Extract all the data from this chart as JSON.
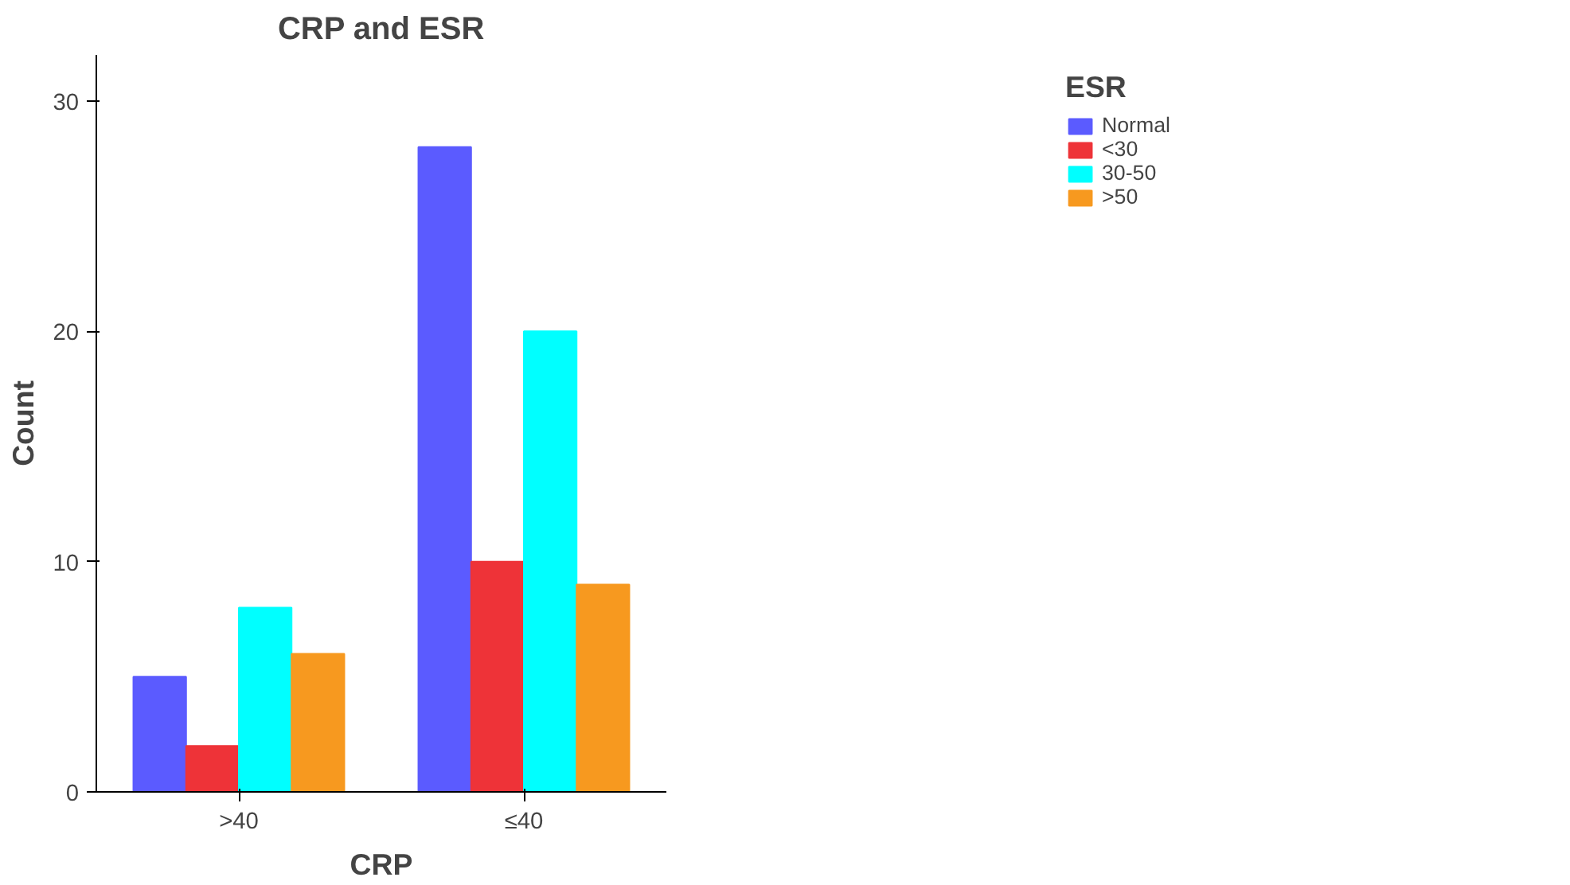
{
  "chart_data": {
    "type": "bar",
    "title": "CRP and ESR",
    "xlabel": "CRP",
    "ylabel": "Count",
    "legend_title": "ESR",
    "categories": [
      ">40",
      "≤40"
    ],
    "series": [
      {
        "name": "Normal",
        "color": "#5b5bff",
        "values": [
          5,
          28
        ]
      },
      {
        "name": "<30",
        "color": "#ee3338",
        "values": [
          2,
          10
        ]
      },
      {
        "name": "30-50",
        "color": "#00ffff",
        "values": [
          8,
          20
        ]
      },
      {
        "name": ">50",
        "color": "#f7991f",
        "values": [
          6,
          9
        ]
      }
    ],
    "ylim": [
      0,
      32
    ],
    "yticks": [
      0,
      10,
      20,
      30
    ],
    "grid": false,
    "legend": "top right"
  }
}
